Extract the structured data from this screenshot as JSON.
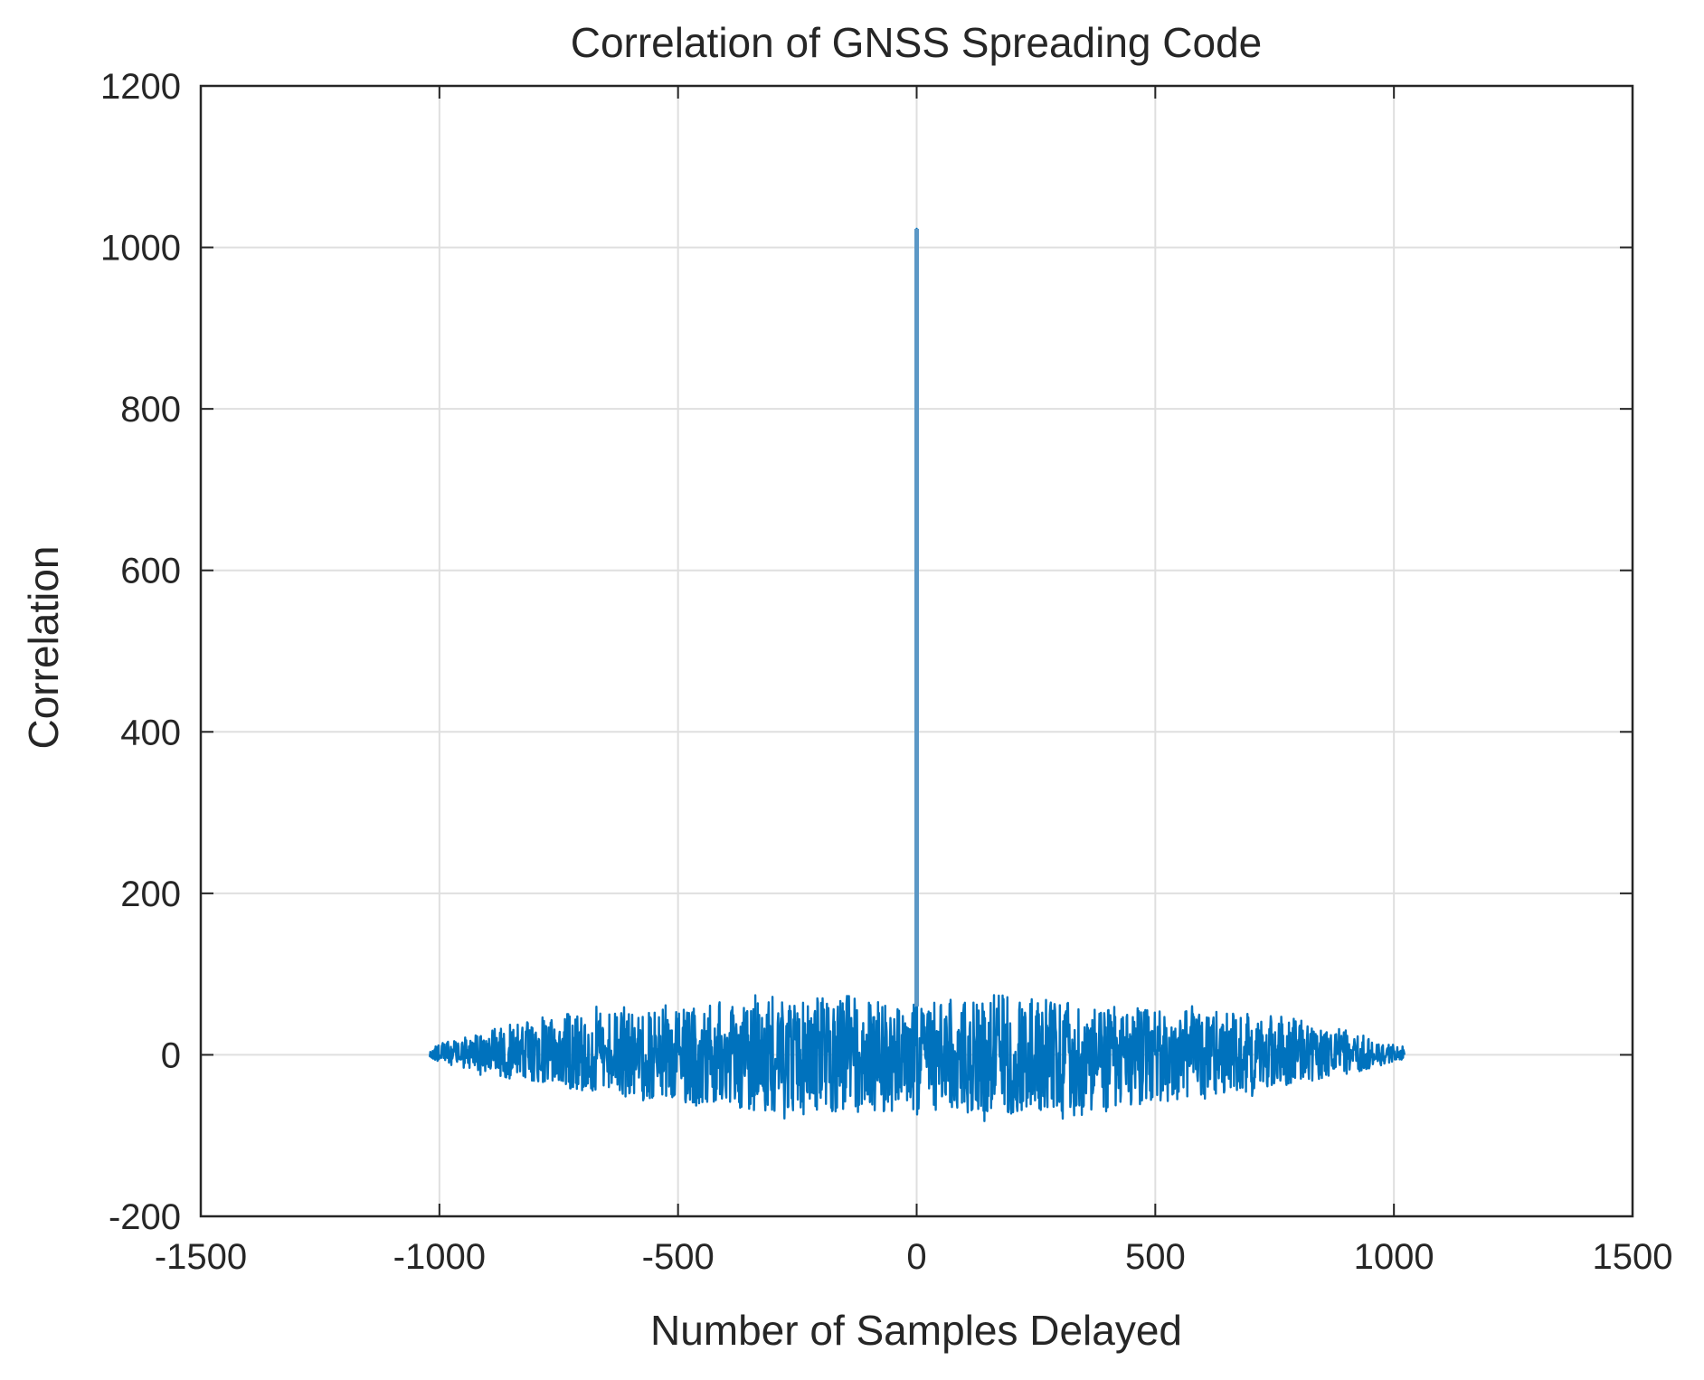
{
  "chart_data": {
    "type": "line",
    "title": "Correlation of GNSS Spreading Code",
    "xlabel": "Number of Samples Delayed",
    "ylabel": "Correlation",
    "xlim": [
      -1500,
      1500
    ],
    "ylim": [
      -200,
      1200
    ],
    "xticks": [
      -1500,
      -1000,
      -500,
      0,
      500,
      1000,
      1500
    ],
    "yticks": [
      -200,
      0,
      200,
      400,
      600,
      800,
      1000,
      1200
    ],
    "grid": true,
    "legend": "none",
    "series": [
      {
        "name": "Correlation",
        "color": "#0072BD",
        "x_range": [
          -1022,
          1022
        ],
        "peak": {
          "x": 0,
          "y": 1023
        },
        "sidelobe_envelope": {
          "x": [
            -1022,
            -900,
            -750,
            -600,
            -450,
            -300,
            -150,
            -30,
            30,
            150,
            300,
            450,
            600,
            750,
            900,
            1022
          ],
          "upper": [
            10,
            30,
            50,
            55,
            60,
            68,
            75,
            65,
            65,
            75,
            68,
            60,
            55,
            50,
            30,
            10
          ],
          "lower": [
            -5,
            -25,
            -40,
            -55,
            -65,
            -70,
            -75,
            -70,
            -70,
            -75,
            -70,
            -65,
            -55,
            -40,
            -25,
            -5
          ]
        }
      }
    ]
  }
}
